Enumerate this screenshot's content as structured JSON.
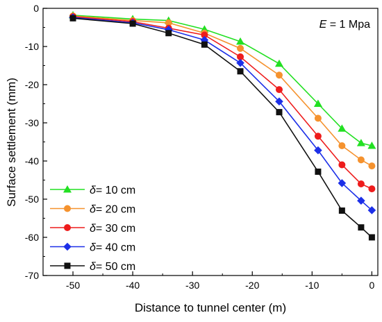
{
  "chart_data": {
    "type": "line",
    "xlabel": "Distance to tunnel center (m)",
    "ylabel": "Surface settlement (mm)",
    "xlim": [
      -55,
      1
    ],
    "ylim": [
      -70,
      0
    ],
    "xticks": [
      -50,
      -40,
      -30,
      -20,
      -10,
      0
    ],
    "yticks": [
      0,
      -10,
      -20,
      -30,
      -40,
      -50,
      -60,
      -70
    ],
    "xtick_labels": [
      "-50",
      "-40",
      "-30",
      "-20",
      "-10",
      "0"
    ],
    "ytick_labels": [
      "0",
      "-10",
      "-20",
      "-30",
      "-40",
      "-50",
      "-60",
      "-70"
    ],
    "grid": false,
    "legend_position": "bottom-left",
    "annotation": {
      "symbol": "E",
      "text": " = 1 Mpa"
    },
    "x": [
      -50,
      -40,
      -34,
      -28,
      -22,
      -15.5,
      -9,
      -5,
      -1.8,
      0
    ],
    "series": [
      {
        "symbol": "δ",
        "name": "= 10 cm",
        "color": "#22e022",
        "marker": "triangle",
        "values": [
          -1.8,
          -2.8,
          -3.2,
          -5.5,
          -8.7,
          -14.5,
          -25,
          -31.5,
          -35.3,
          -36
        ]
      },
      {
        "symbol": "δ",
        "name": "= 20 cm",
        "color": "#f5922e",
        "marker": "circle",
        "values": [
          -2,
          -3.2,
          -3.8,
          -6.5,
          -10.5,
          -17.5,
          -28.8,
          -36,
          -39.7,
          -41.3
        ]
      },
      {
        "symbol": "δ",
        "name": "= 30 cm",
        "color": "#ee1c1c",
        "marker": "circle",
        "values": [
          -2.2,
          -3.5,
          -5.2,
          -7,
          -12.7,
          -21.3,
          -33.5,
          -41,
          -46,
          -47.3
        ]
      },
      {
        "symbol": "δ",
        "name": "= 40 cm",
        "color": "#1c2fe8",
        "marker": "diamond",
        "values": [
          -2.4,
          -3.8,
          -5.6,
          -8.3,
          -14.3,
          -24.4,
          -37.2,
          -45.8,
          -50.4,
          -52.9
        ]
      },
      {
        "symbol": "δ",
        "name": "= 50 cm",
        "color": "#111111",
        "marker": "square",
        "values": [
          -2.6,
          -4,
          -6.5,
          -9.5,
          -16.5,
          -27.2,
          -42.8,
          -53,
          -57.4,
          -60
        ]
      }
    ]
  }
}
